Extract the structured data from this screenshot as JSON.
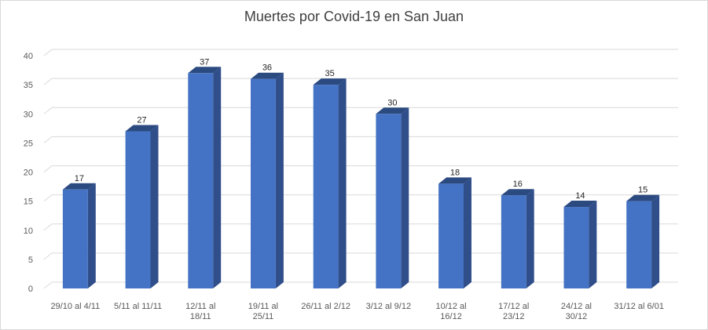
{
  "chart_data": {
    "type": "bar",
    "title": "Muertes por Covid-19 en San Juan",
    "xlabel": "",
    "ylabel": "",
    "ylim": [
      0,
      40
    ],
    "yticks": [
      0,
      5,
      10,
      15,
      20,
      25,
      30,
      35,
      40
    ],
    "grid": true,
    "style": "3d-column",
    "bar_color": "#4472C4",
    "bar_side_color": "#2F4E8A",
    "bar_top_color": "#2B4A80",
    "categories": [
      [
        "29/10 al 4/11"
      ],
      [
        "5/11 al 11/11"
      ],
      [
        "12/11 al",
        "18/11"
      ],
      [
        "19/11 al",
        "25/11"
      ],
      [
        "26/11 al 2/12"
      ],
      [
        "3/12 al 9/12"
      ],
      [
        "10/12 al",
        "16/12"
      ],
      [
        "17/12 al",
        "23/12"
      ],
      [
        "24/12 al",
        "30/12"
      ],
      [
        "31/12 al 6/01"
      ]
    ],
    "values": [
      17,
      27,
      37,
      36,
      35,
      30,
      18,
      16,
      14,
      15
    ]
  }
}
